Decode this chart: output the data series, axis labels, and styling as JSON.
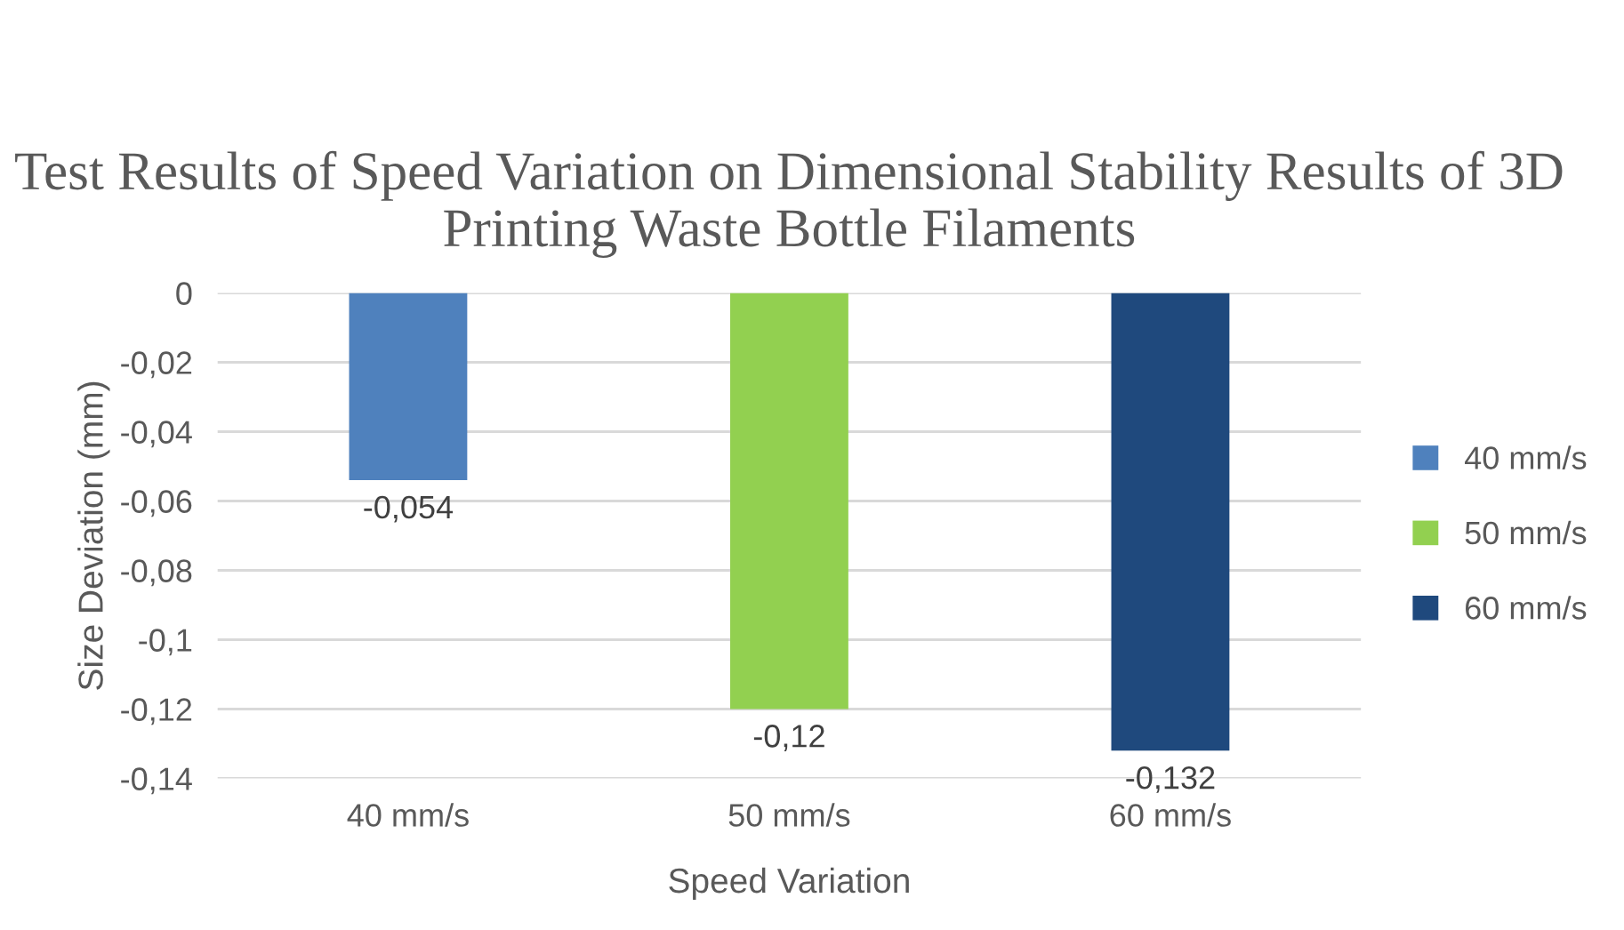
{
  "chart_data": {
    "type": "bar",
    "title": "Test Results of Speed Variation on Dimensional Stability Results of 3D Printing Waste Bottle Filaments",
    "xlabel": "Speed Variation",
    "ylabel": "Size Deviation (mm)",
    "categories": [
      "40 mm/s",
      "50 mm/s",
      "60 mm/s"
    ],
    "series": [
      {
        "name": "40 mm/s",
        "color": "#4f81bd",
        "values": [
          -0.054,
          null,
          null
        ],
        "value_labels": [
          "-0,054",
          null,
          null
        ]
      },
      {
        "name": "50 mm/s",
        "color": "#92d050",
        "values": [
          null,
          -0.12,
          null
        ],
        "value_labels": [
          null,
          "-0,12",
          null
        ]
      },
      {
        "name": "60 mm/s",
        "color": "#1f497d",
        "values": [
          null,
          null,
          -0.132
        ],
        "value_labels": [
          null,
          null,
          "-0,132"
        ]
      }
    ],
    "ylim": [
      -0.14,
      0
    ],
    "yticks": [
      {
        "value": 0,
        "label": "0"
      },
      {
        "value": -0.02,
        "label": "-0,02"
      },
      {
        "value": -0.04,
        "label": "-0,04"
      },
      {
        "value": -0.06,
        "label": "-0,06"
      },
      {
        "value": -0.08,
        "label": "-0,08"
      },
      {
        "value": -0.1,
        "label": "-0,1"
      },
      {
        "value": -0.12,
        "label": "-0,12"
      },
      {
        "value": -0.14,
        "label": "-0,14"
      }
    ],
    "grid": "y",
    "legend": "right"
  }
}
